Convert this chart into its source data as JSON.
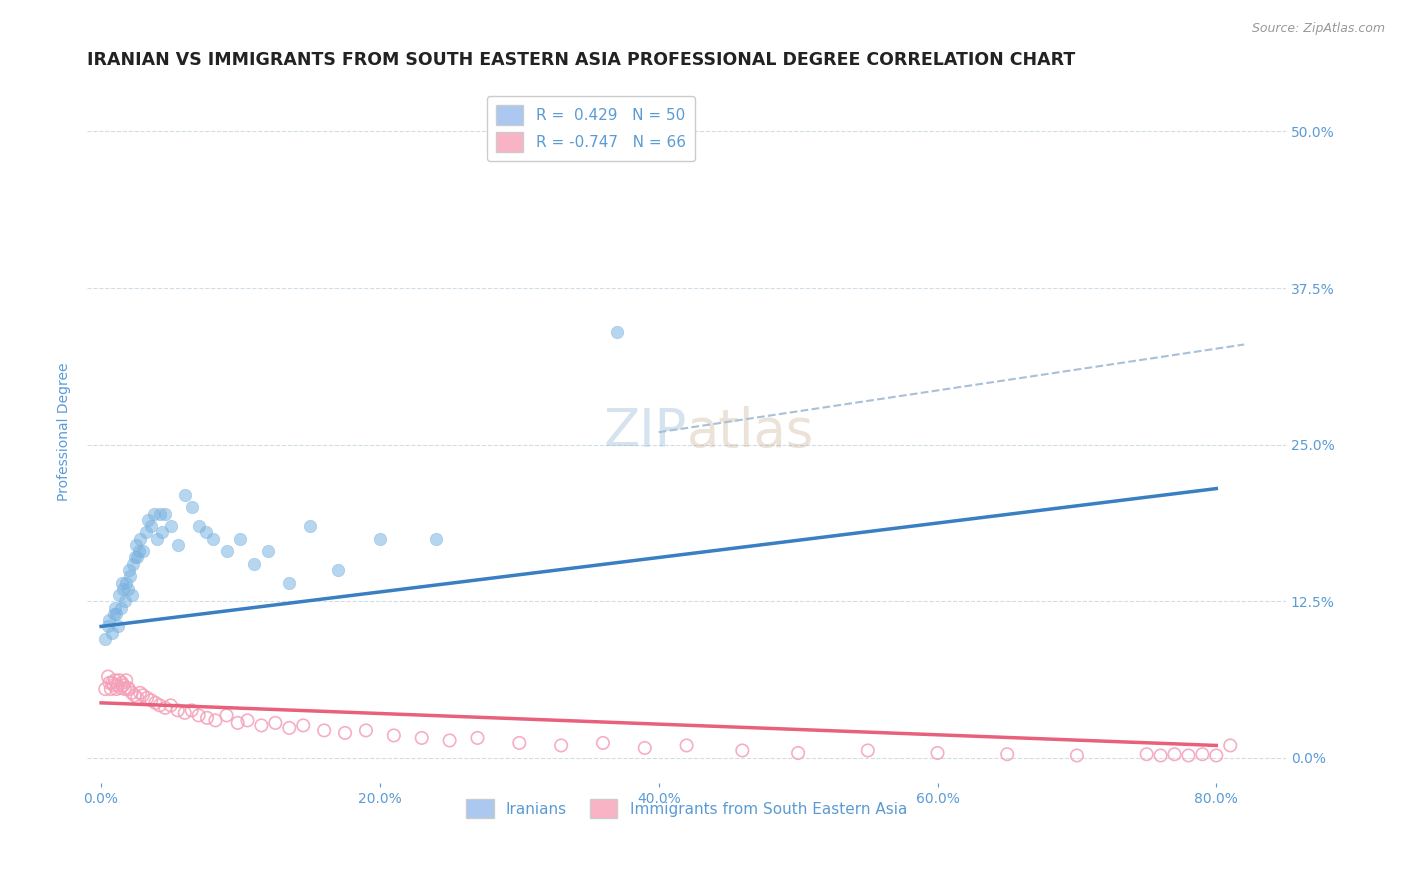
{
  "title": "IRANIAN VS IMMIGRANTS FROM SOUTH EASTERN ASIA PROFESSIONAL DEGREE CORRELATION CHART",
  "source_text": "Source: ZipAtlas.com",
  "ylabel": "Professional Degree",
  "x_tick_labels": [
    "0.0%",
    "20.0%",
    "40.0%",
    "60.0%",
    "80.0%"
  ],
  "x_tick_vals": [
    0.0,
    0.2,
    0.4,
    0.6,
    0.8
  ],
  "y_tick_labels": [
    "0.0%",
    "12.5%",
    "25.0%",
    "37.5%",
    "50.0%"
  ],
  "y_tick_vals": [
    0.0,
    0.125,
    0.25,
    0.375,
    0.5
  ],
  "xlim": [
    -0.01,
    0.85
  ],
  "ylim": [
    -0.02,
    0.54
  ],
  "legend_items": [
    {
      "label": "R =  0.429   N = 50",
      "color": "#aac8f0"
    },
    {
      "label": "R = -0.747   N = 66",
      "color": "#f8b4c4"
    }
  ],
  "watermark_zip": "ZIP",
  "watermark_atlas": "atlas",
  "blue_scatter_color": "#7ab3e0",
  "pink_scatter_color": "#f4a0b8",
  "blue_line_color": "#3a7fc1",
  "pink_line_color": "#e8607a",
  "dash_line_color": "#a8c0d8",
  "grid_color": "#d0dce8",
  "axis_color": "#5b9bd5",
  "title_color": "#222222",
  "background_color": "#ffffff",
  "iranians_x": [
    0.003,
    0.005,
    0.006,
    0.008,
    0.009,
    0.01,
    0.011,
    0.012,
    0.013,
    0.014,
    0.015,
    0.016,
    0.017,
    0.018,
    0.019,
    0.02,
    0.021,
    0.022,
    0.023,
    0.024,
    0.025,
    0.026,
    0.027,
    0.028,
    0.03,
    0.032,
    0.034,
    0.036,
    0.038,
    0.04,
    0.042,
    0.044,
    0.046,
    0.05,
    0.055,
    0.06,
    0.065,
    0.07,
    0.075,
    0.08,
    0.09,
    0.1,
    0.11,
    0.12,
    0.135,
    0.15,
    0.17,
    0.2,
    0.24,
    0.37
  ],
  "iranians_y": [
    0.095,
    0.105,
    0.11,
    0.1,
    0.115,
    0.12,
    0.115,
    0.105,
    0.13,
    0.12,
    0.14,
    0.135,
    0.125,
    0.14,
    0.135,
    0.15,
    0.145,
    0.13,
    0.155,
    0.16,
    0.17,
    0.16,
    0.165,
    0.175,
    0.165,
    0.18,
    0.19,
    0.185,
    0.195,
    0.175,
    0.195,
    0.18,
    0.195,
    0.185,
    0.17,
    0.21,
    0.2,
    0.185,
    0.18,
    0.175,
    0.165,
    0.175,
    0.155,
    0.165,
    0.14,
    0.185,
    0.15,
    0.175,
    0.175,
    0.34
  ],
  "sea_x": [
    0.003,
    0.005,
    0.006,
    0.007,
    0.008,
    0.009,
    0.01,
    0.011,
    0.012,
    0.013,
    0.014,
    0.015,
    0.016,
    0.017,
    0.018,
    0.019,
    0.02,
    0.022,
    0.024,
    0.026,
    0.028,
    0.03,
    0.033,
    0.036,
    0.039,
    0.042,
    0.046,
    0.05,
    0.055,
    0.06,
    0.065,
    0.07,
    0.076,
    0.082,
    0.09,
    0.098,
    0.105,
    0.115,
    0.125,
    0.135,
    0.145,
    0.16,
    0.175,
    0.19,
    0.21,
    0.23,
    0.25,
    0.27,
    0.3,
    0.33,
    0.36,
    0.39,
    0.42,
    0.46,
    0.5,
    0.55,
    0.6,
    0.65,
    0.7,
    0.75,
    0.76,
    0.77,
    0.78,
    0.79,
    0.8,
    0.81
  ],
  "sea_y": [
    0.055,
    0.065,
    0.06,
    0.055,
    0.06,
    0.058,
    0.062,
    0.055,
    0.058,
    0.062,
    0.056,
    0.06,
    0.058,
    0.055,
    0.062,
    0.056,
    0.055,
    0.052,
    0.05,
    0.048,
    0.052,
    0.05,
    0.048,
    0.046,
    0.044,
    0.042,
    0.04,
    0.042,
    0.038,
    0.036,
    0.038,
    0.034,
    0.032,
    0.03,
    0.034,
    0.028,
    0.03,
    0.026,
    0.028,
    0.024,
    0.026,
    0.022,
    0.02,
    0.022,
    0.018,
    0.016,
    0.014,
    0.016,
    0.012,
    0.01,
    0.012,
    0.008,
    0.01,
    0.006,
    0.004,
    0.006,
    0.004,
    0.003,
    0.002,
    0.003,
    0.002,
    0.003,
    0.002,
    0.003,
    0.002,
    0.01
  ],
  "blue_trend_x": [
    0.0,
    0.8
  ],
  "blue_trend_y": [
    0.105,
    0.215
  ],
  "pink_trend_x": [
    0.0,
    0.8
  ],
  "pink_trend_y": [
    0.044,
    0.01
  ],
  "dash_trend_x": [
    0.4,
    0.82
  ],
  "dash_trend_y": [
    0.26,
    0.33
  ],
  "title_fontsize": 12.5,
  "axis_label_fontsize": 10,
  "tick_fontsize": 10,
  "legend_fontsize": 11,
  "watermark_zip_fontsize": 38,
  "watermark_atlas_fontsize": 38,
  "scatter_size": 80,
  "scatter_alpha": 0.55,
  "bottom_legend_items": [
    {
      "label": "Iranians",
      "color": "#aac8f0"
    },
    {
      "label": "Immigrants from South Eastern Asia",
      "color": "#f8b4c4"
    }
  ]
}
